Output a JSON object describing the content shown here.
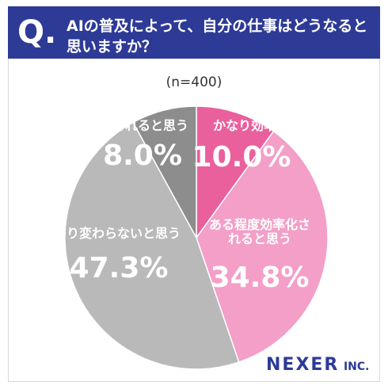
{
  "header": {
    "question_label": "Q.",
    "title_lines": [
      "AIの普及によって、自分の仕事はどうなると",
      "思いますか？"
    ]
  },
  "chart_data": {
    "type": "pie",
    "subtitle": "(n=400)",
    "categories": [
      "かなり効率化されると思う",
      "ある程度効率化されると思う",
      "あまり変わらないと思う",
      "仕事が脅かされると思う"
    ],
    "values": [
      10.0,
      34.8,
      47.3,
      8.0
    ],
    "value_labels": [
      "10.0%",
      "34.8%",
      "47.3%",
      "8.0%"
    ],
    "colors": [
      "#e9609d",
      "#f39fc7",
      "#b9b9b9",
      "#8d8d8d"
    ]
  },
  "footer": {
    "brand": "NEXER",
    "brand_suffix": "INC."
  }
}
